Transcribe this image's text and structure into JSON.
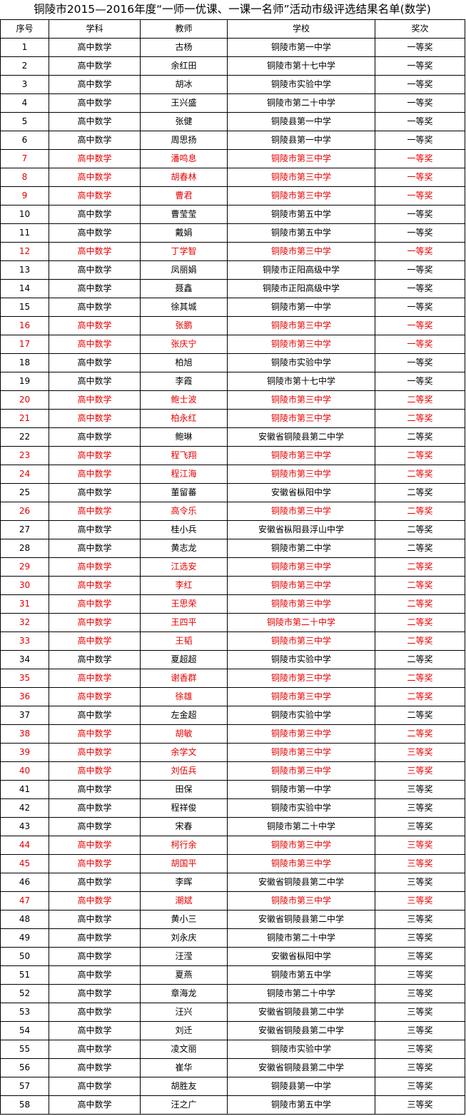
{
  "title": "铜陵市2015—2016年度“一师一优课、一课一名师”活动市级评选结果名单(数学)",
  "colors": {
    "normal_text": "#000000",
    "highlight_text": "#e60000"
  },
  "headers": [
    "序号",
    "学科",
    "教师",
    "学校",
    "奖次"
  ],
  "rows": [
    {
      "no": "1",
      "subject": "高中数学",
      "teacher": "古杨",
      "school": "铜陵市第一中学",
      "award": "一等奖",
      "red": false
    },
    {
      "no": "2",
      "subject": "高中数学",
      "teacher": "余红田",
      "school": "铜陵市第十七中学",
      "award": "一等奖",
      "red": false
    },
    {
      "no": "3",
      "subject": "高中数学",
      "teacher": "胡冰",
      "school": "铜陵市实验中学",
      "award": "一等奖",
      "red": false
    },
    {
      "no": "4",
      "subject": "高中数学",
      "teacher": "王兴盛",
      "school": "铜陵市第二十中学",
      "award": "一等奖",
      "red": false
    },
    {
      "no": "5",
      "subject": "高中数学",
      "teacher": "张健",
      "school": "铜陵县第一中学",
      "award": "一等奖",
      "red": false
    },
    {
      "no": "6",
      "subject": "高中数学",
      "teacher": "周思扬",
      "school": "铜陵县第一中学",
      "award": "一等奖",
      "red": false
    },
    {
      "no": "7",
      "subject": "高中数学",
      "teacher": "潘鸣息",
      "school": "铜陵市第三中学",
      "award": "一等奖",
      "red": true
    },
    {
      "no": "8",
      "subject": "高中数学",
      "teacher": "胡春林",
      "school": "铜陵市第三中学",
      "award": "一等奖",
      "red": true
    },
    {
      "no": "9",
      "subject": "高中数学",
      "teacher": "曹君",
      "school": "铜陵市第三中学",
      "award": "一等奖",
      "red": true
    },
    {
      "no": "10",
      "subject": "高中数学",
      "teacher": "曹莹莹",
      "school": "铜陵市第五中学",
      "award": "一等奖",
      "red": false
    },
    {
      "no": "11",
      "subject": "高中数学",
      "teacher": "戴娟",
      "school": "铜陵市第五中学",
      "award": "一等奖",
      "red": false
    },
    {
      "no": "12",
      "subject": "高中数学",
      "teacher": "丁学智",
      "school": "铜陵市第三中学",
      "award": "一等奖",
      "red": true
    },
    {
      "no": "13",
      "subject": "高中数学",
      "teacher": "凤丽娟",
      "school": "铜陵市正阳高级中学",
      "award": "一等奖",
      "red": false
    },
    {
      "no": "14",
      "subject": "高中数学",
      "teacher": "聂鑫",
      "school": "铜陵市正阳高级中学",
      "award": "一等奖",
      "red": false
    },
    {
      "no": "15",
      "subject": "高中数学",
      "teacher": "徐其城",
      "school": "铜陵市第一中学",
      "award": "一等奖",
      "red": false
    },
    {
      "no": "16",
      "subject": "高中数学",
      "teacher": "张鹏",
      "school": "铜陵市第三中学",
      "award": "一等奖",
      "red": true
    },
    {
      "no": "17",
      "subject": "高中数学",
      "teacher": "张庆宁",
      "school": "铜陵市第三中学",
      "award": "一等奖",
      "red": true
    },
    {
      "no": "18",
      "subject": "高中数学",
      "teacher": "柏旭",
      "school": "铜陵市实验中学",
      "award": "一等奖",
      "red": false
    },
    {
      "no": "19",
      "subject": "高中数学",
      "teacher": "李霞",
      "school": "铜陵市第十七中学",
      "award": "一等奖",
      "red": false
    },
    {
      "no": "20",
      "subject": "高中数学",
      "teacher": "鲍士波",
      "school": "铜陵市第三中学",
      "award": "二等奖",
      "red": true
    },
    {
      "no": "21",
      "subject": "高中数学",
      "teacher": "柏永红",
      "school": "铜陵市第三中学",
      "award": "二等奖",
      "red": true
    },
    {
      "no": "22",
      "subject": "高中数学",
      "teacher": "鲍琳",
      "school": "安徽省铜陵县第二中学",
      "award": "二等奖",
      "red": false
    },
    {
      "no": "23",
      "subject": "高中数学",
      "teacher": "程飞翔",
      "school": "铜陵市第三中学",
      "award": "二等奖",
      "red": true
    },
    {
      "no": "24",
      "subject": "高中数学",
      "teacher": "程江海",
      "school": "铜陵市第三中学",
      "award": "二等奖",
      "red": true
    },
    {
      "no": "25",
      "subject": "高中数学",
      "teacher": "董留蕃",
      "school": "安徽省枞阳中学",
      "award": "二等奖",
      "red": false
    },
    {
      "no": "26",
      "subject": "高中数学",
      "teacher": "高令乐",
      "school": "铜陵市第三中学",
      "award": "二等奖",
      "red": true
    },
    {
      "no": "27",
      "subject": "高中数学",
      "teacher": "桂小兵",
      "school": "安徽省枞阳县浮山中学",
      "award": "二等奖",
      "red": false
    },
    {
      "no": "28",
      "subject": "高中数学",
      "teacher": "黄志龙",
      "school": "铜陵市第二中学",
      "award": "二等奖",
      "red": false
    },
    {
      "no": "29",
      "subject": "高中数学",
      "teacher": "江选安",
      "school": "铜陵市第三中学",
      "award": "二等奖",
      "red": true
    },
    {
      "no": "30",
      "subject": "高中数学",
      "teacher": "李红",
      "school": "铜陵市第三中学",
      "award": "二等奖",
      "red": true
    },
    {
      "no": "31",
      "subject": "高中数学",
      "teacher": "王思荣",
      "school": "铜陵市第三中学",
      "award": "二等奖",
      "red": true
    },
    {
      "no": "32",
      "subject": "高中数学",
      "teacher": "王四平",
      "school": "铜陵市第二十中学",
      "award": "二等奖",
      "red": true
    },
    {
      "no": "33",
      "subject": "高中数学",
      "teacher": "王韬",
      "school": "铜陵市第三中学",
      "award": "二等奖",
      "red": true
    },
    {
      "no": "34",
      "subject": "高中数学",
      "teacher": "夏超超",
      "school": "铜陵市实验中学",
      "award": "二等奖",
      "red": false
    },
    {
      "no": "35",
      "subject": "高中数学",
      "teacher": "谢香群",
      "school": "铜陵市第三中学",
      "award": "二等奖",
      "red": true
    },
    {
      "no": "36",
      "subject": "高中数学",
      "teacher": "徐雄",
      "school": "铜陵市第三中学",
      "award": "二等奖",
      "red": true
    },
    {
      "no": "37",
      "subject": "高中数学",
      "teacher": "左金超",
      "school": "铜陵市实验中学",
      "award": "二等奖",
      "red": false
    },
    {
      "no": "38",
      "subject": "高中数学",
      "teacher": "胡敏",
      "school": "铜陵市第三中学",
      "award": "二等奖",
      "red": true
    },
    {
      "no": "39",
      "subject": "高中数学",
      "teacher": "余学文",
      "school": "铜陵市第三中学",
      "award": "三等奖",
      "red": true
    },
    {
      "no": "40",
      "subject": "高中数学",
      "teacher": "刘伍兵",
      "school": "铜陵市第三中学",
      "award": "三等奖",
      "red": true
    },
    {
      "no": "41",
      "subject": "高中数学",
      "teacher": "田保",
      "school": "铜陵市第一中学",
      "award": "三等奖",
      "red": false
    },
    {
      "no": "42",
      "subject": "高中数学",
      "teacher": "程祥俊",
      "school": "铜陵市实验中学",
      "award": "三等奖",
      "red": false
    },
    {
      "no": "43",
      "subject": "高中数学",
      "teacher": "宋春",
      "school": "铜陵市第二十中学",
      "award": "三等奖",
      "red": false
    },
    {
      "no": "44",
      "subject": "高中数学",
      "teacher": "柯行余",
      "school": "铜陵市第三中学",
      "award": "三等奖",
      "red": true
    },
    {
      "no": "45",
      "subject": "高中数学",
      "teacher": "胡国平",
      "school": "铜陵市第三中学",
      "award": "三等奖",
      "red": true
    },
    {
      "no": "46",
      "subject": "高中数学",
      "teacher": "李晖",
      "school": "安徽省铜陵县第二中学",
      "award": "三等奖",
      "red": false
    },
    {
      "no": "47",
      "subject": "高中数学",
      "teacher": "潮斌",
      "school": "铜陵市第三中学",
      "award": "三等奖",
      "red": true
    },
    {
      "no": "48",
      "subject": "高中数学",
      "teacher": "黄小三",
      "school": "安徽省铜陵县第二中学",
      "award": "三等奖",
      "red": false
    },
    {
      "no": "49",
      "subject": "高中数学",
      "teacher": "刘永庆",
      "school": "铜陵市第二十中学",
      "award": "三等奖",
      "red": false
    },
    {
      "no": "50",
      "subject": "高中数学",
      "teacher": "汪滢",
      "school": "安徽省枞阳中学",
      "award": "三等奖",
      "red": false
    },
    {
      "no": "51",
      "subject": "高中数学",
      "teacher": "夏燕",
      "school": "铜陵市第五中学",
      "award": "三等奖",
      "red": false
    },
    {
      "no": "52",
      "subject": "高中数学",
      "teacher": "章海龙",
      "school": "铜陵市第二十中学",
      "award": "三等奖",
      "red": false
    },
    {
      "no": "53",
      "subject": "高中数学",
      "teacher": "汪兴",
      "school": "安徽省铜陵县第二中学",
      "award": "三等奖",
      "red": false
    },
    {
      "no": "54",
      "subject": "高中数学",
      "teacher": "刘迁",
      "school": "安徽省铜陵县第二中学",
      "award": "三等奖",
      "red": false
    },
    {
      "no": "55",
      "subject": "高中数学",
      "teacher": "凌文丽",
      "school": "铜陵市实验中学",
      "award": "三等奖",
      "red": false
    },
    {
      "no": "56",
      "subject": "高中数学",
      "teacher": "崔华",
      "school": "安徽省铜陵县第二中学",
      "award": "三等奖",
      "red": false
    },
    {
      "no": "57",
      "subject": "高中数学",
      "teacher": "胡胜友",
      "school": "铜陵县第一中学",
      "award": "三等奖",
      "red": false
    },
    {
      "no": "58",
      "subject": "高中数学",
      "teacher": "汪之广",
      "school": "铜陵市第五中学",
      "award": "三等奖",
      "red": false
    }
  ]
}
